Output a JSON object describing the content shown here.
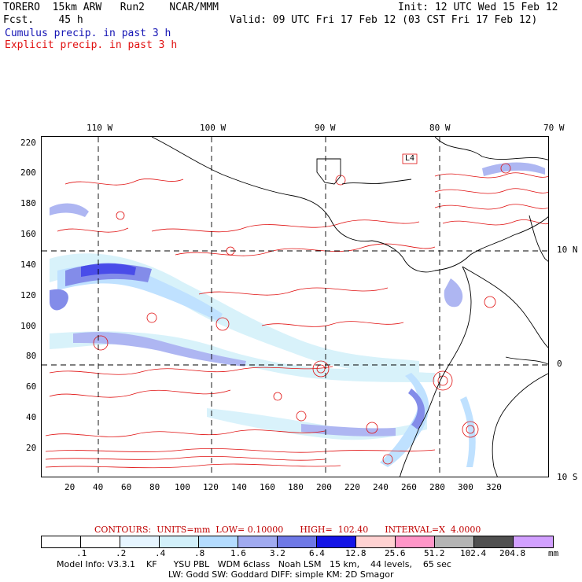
{
  "header": {
    "model_line": "TORERO  15km ARW   Run2    NCAR/MMM",
    "init_line": "Init: 12 UTC Wed 15 Feb 12",
    "fcst_line": "Fcst.    45 h",
    "valid_line": "Valid: 09 UTC Fri 17 Feb 12 (03 CST Fri 17 Feb 12)"
  },
  "legend": {
    "cumulus": "Cumulus precip. in past 3 h",
    "explicit": "Explicit precip. in past 3 h",
    "cumulus_color": "#1414b4",
    "explicit_color": "#e01010"
  },
  "top_axis": [
    "110 W",
    "100 W",
    "90 W",
    "80 W",
    "70 W"
  ],
  "right_axis": [
    "10 N",
    "0",
    "10 S"
  ],
  "left_axis": [
    "220",
    "200",
    "180",
    "160",
    "140",
    "120",
    "100",
    "80",
    "60",
    "40",
    "20"
  ],
  "bottom_axis": [
    "20",
    "40",
    "60",
    "80",
    "100",
    "120",
    "140",
    "160",
    "180",
    "200",
    "220",
    "240",
    "260",
    "280",
    "300",
    "320"
  ],
  "map_label_box": "L4",
  "contour_info": "CONTOURS:  UNITS=mm  LOW= 0.10000      HIGH=  102.40      INTERVAL=X  4.0000",
  "colorbar": {
    "labels": [
      ".1",
      ".2",
      ".4",
      ".8",
      "1.6",
      "3.2",
      "6.4",
      "12.8",
      "25.6",
      "51.2",
      "102.4",
      "204.8"
    ],
    "unit": "mm",
    "colors": [
      "#ffffff",
      "#ffffff",
      "#e6f5ff",
      "#d2f0fa",
      "#b4dcff",
      "#a0aaf0",
      "#6e78e6",
      "#1414e6",
      "#ffd2d2",
      "#ff96c8",
      "#b4b4b4",
      "#505050",
      "#d2a0ff"
    ]
  },
  "model_info": {
    "line1": "Model Info: V3.3.1    KF      YSU PBL   WDM 6class   Noah LSM   15 km,    44 levels,    65 sec",
    "line2": "LW: Godd SW: Goddard DIFF: simple KM: 2D Smagor"
  }
}
